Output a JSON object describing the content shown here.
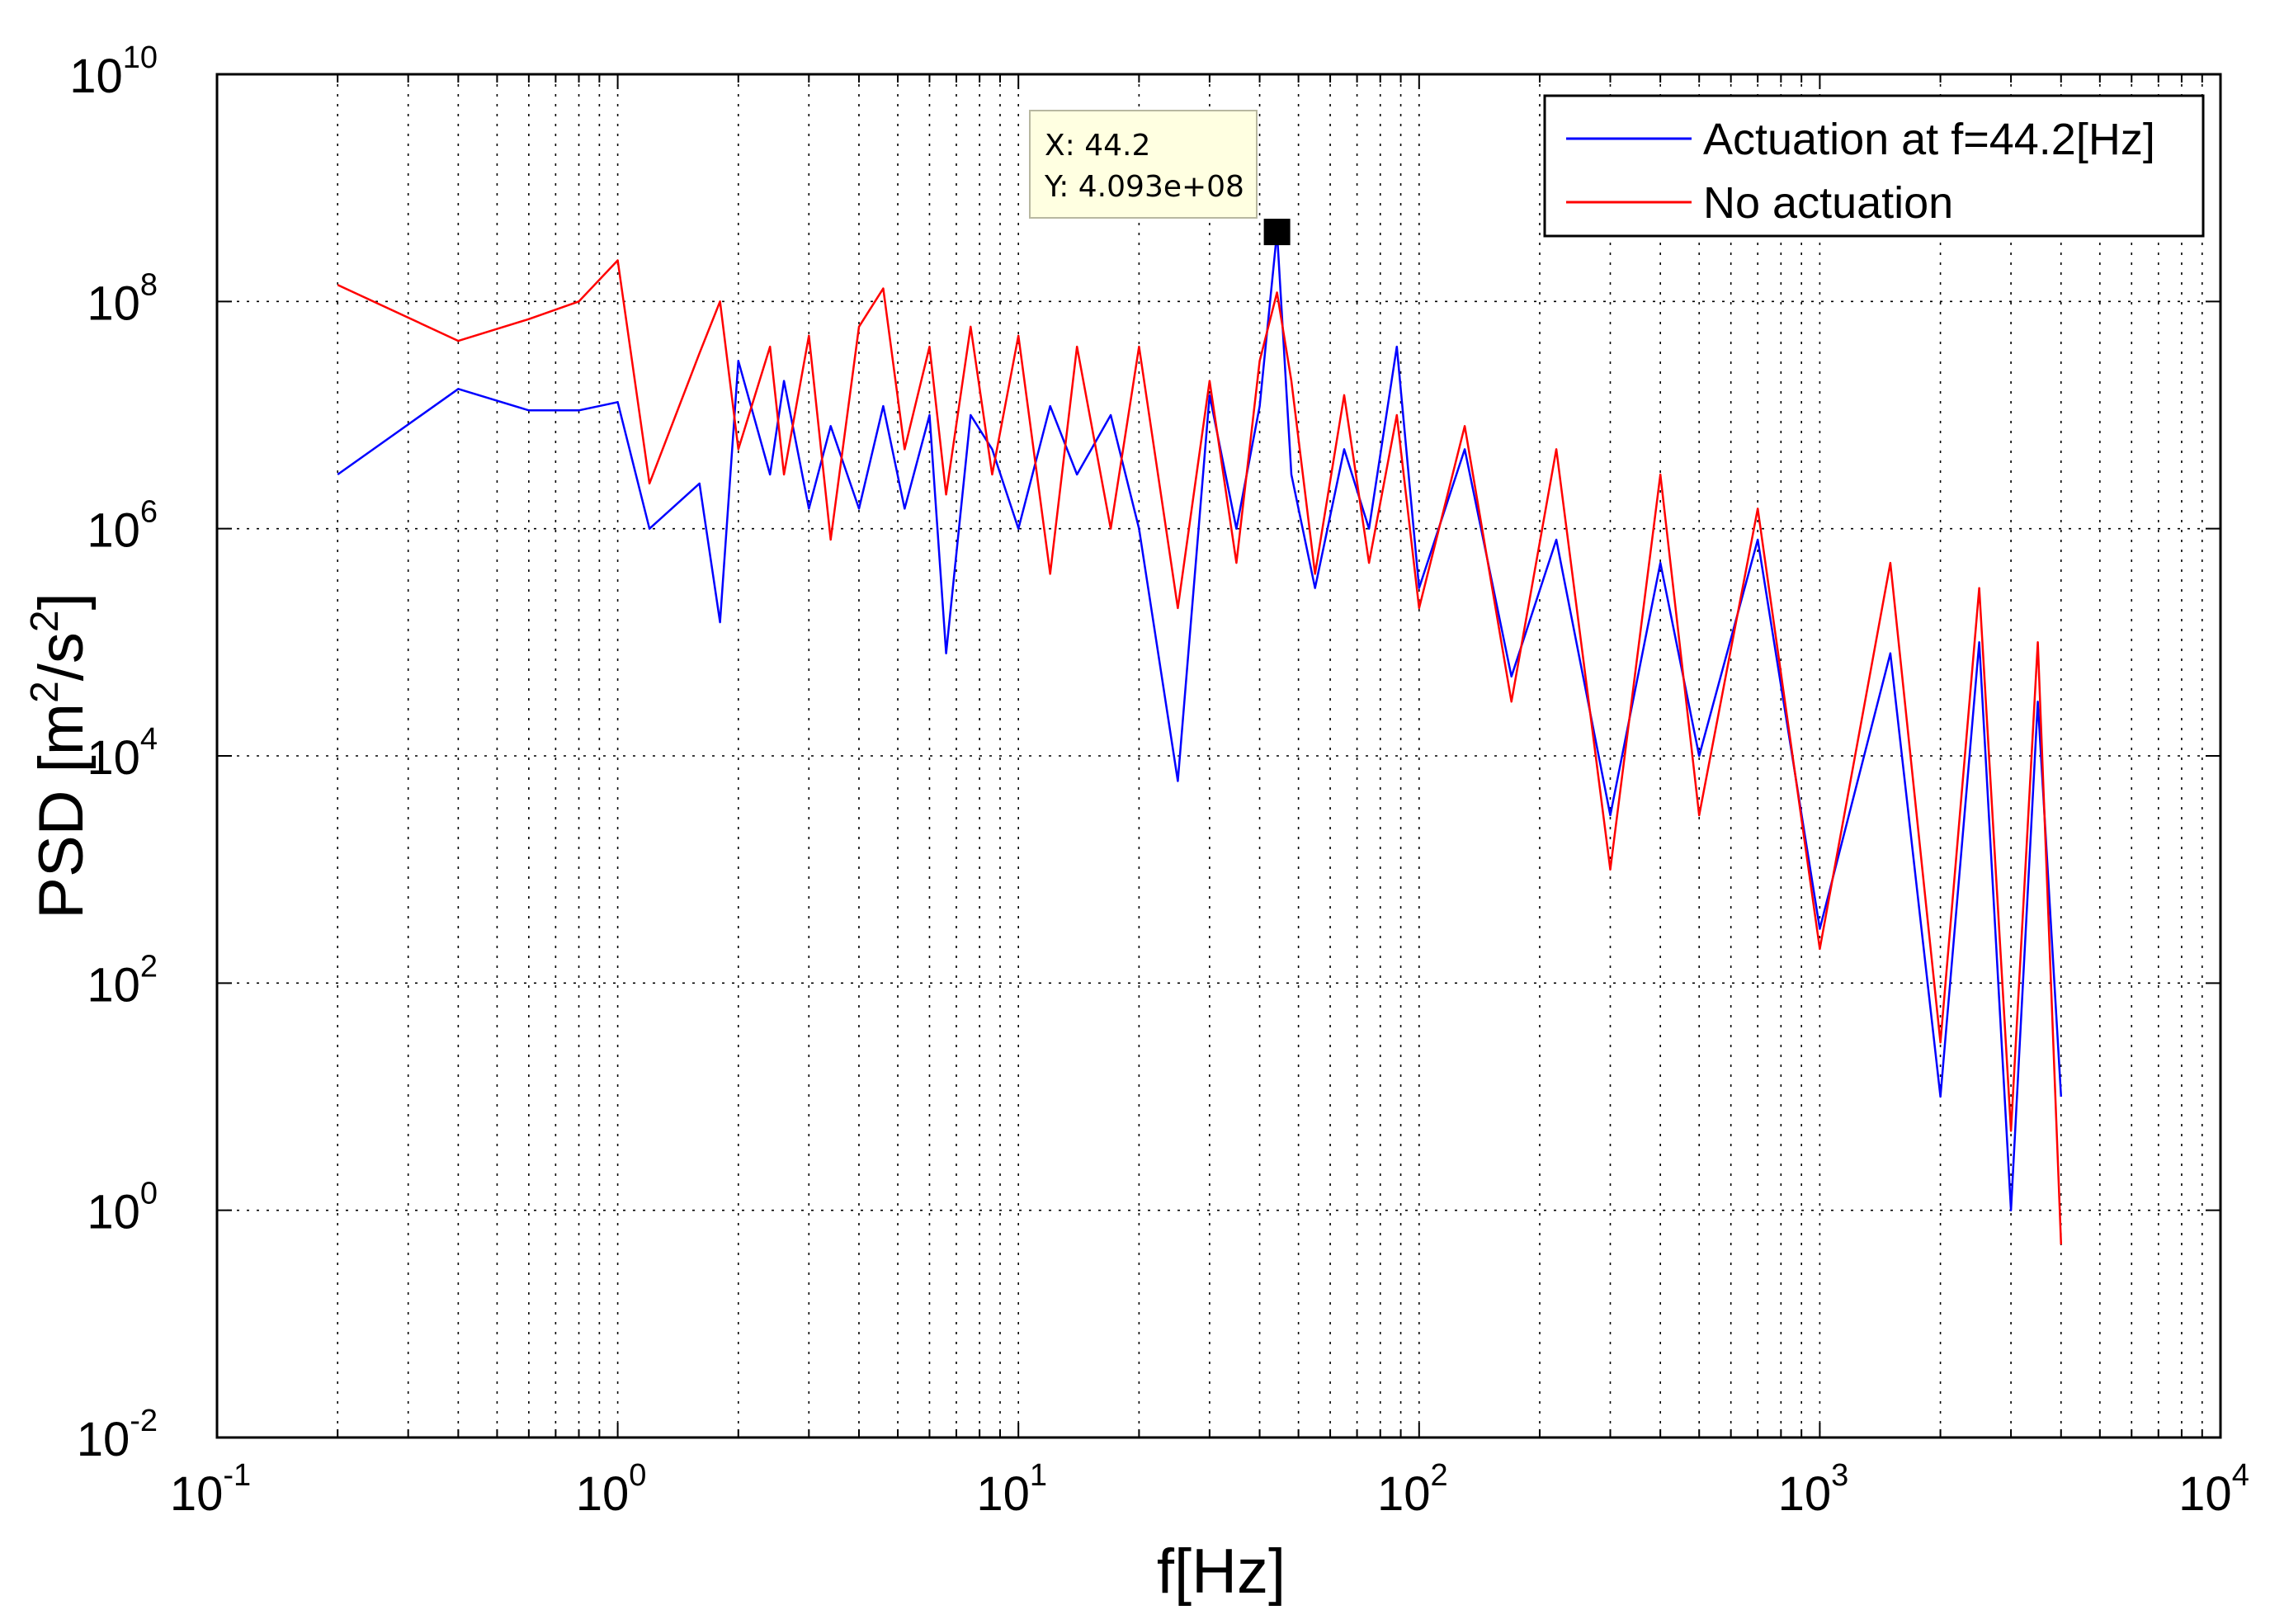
{
  "chart_data": {
    "type": "line",
    "title": "",
    "xlabel": "f[Hz]",
    "ylabel": "PSD [m²/s²]",
    "ylabel_parts": {
      "main": "PSD [m",
      "sup1": "2",
      "mid": "/s",
      "sup2": "2",
      "end": "]"
    },
    "x_scale": "log",
    "y_scale": "log",
    "xlim": [
      0.1,
      10000
    ],
    "ylim": [
      0.01,
      10000000000
    ],
    "grid": true,
    "legend_position": "top-right",
    "x_ticks": [
      {
        "base": "10",
        "exp": "-1",
        "value": 0.1
      },
      {
        "base": "10",
        "exp": "0",
        "value": 1
      },
      {
        "base": "10",
        "exp": "1",
        "value": 10
      },
      {
        "base": "10",
        "exp": "2",
        "value": 100
      },
      {
        "base": "10",
        "exp": "3",
        "value": 1000
      },
      {
        "base": "10",
        "exp": "4",
        "value": 10000
      }
    ],
    "y_ticks": [
      {
        "base": "10",
        "exp": "-2",
        "value": 0.01
      },
      {
        "base": "10",
        "exp": "0",
        "value": 1
      },
      {
        "base": "10",
        "exp": "2",
        "value": 100
      },
      {
        "base": "10",
        "exp": "4",
        "value": 10000
      },
      {
        "base": "10",
        "exp": "6",
        "value": 1000000
      },
      {
        "base": "10",
        "exp": "8",
        "value": 100000000
      },
      {
        "base": "10",
        "exp": "10",
        "value": 10000000000
      }
    ],
    "series": [
      {
        "name": "Actuation at f=44.2[Hz]",
        "color": "#0000ff",
        "x": [
          0.2,
          0.4,
          0.6,
          0.8,
          1.0,
          1.2,
          1.6,
          1.8,
          2.0,
          2.4,
          2.6,
          3.0,
          3.4,
          4.0,
          4.6,
          5.2,
          6.0,
          6.6,
          7.6,
          8.6,
          10,
          12,
          14,
          17,
          20,
          25,
          30,
          35,
          40,
          44.2,
          48,
          55,
          65,
          75,
          88,
          100,
          130,
          170,
          220,
          300,
          400,
          500,
          700,
          1000,
          1500,
          2000,
          2500,
          3000,
          3500,
          4000
        ],
        "y": [
          3000000,
          17000000,
          11000000,
          11000000,
          13000000,
          1000000,
          2500000,
          150000,
          30000000,
          3000000,
          20000000,
          1500000,
          8000000,
          1500000,
          12000000,
          1500000,
          10000000,
          80000,
          10000000,
          5000000,
          1000000,
          12000000,
          3000000,
          10000000,
          1000000,
          6000,
          15000000,
          1000000,
          12000000,
          409300000,
          3000000,
          300000,
          5000000,
          1000000,
          40000000,
          300000,
          5000000,
          50000,
          800000,
          3000,
          500000,
          10000,
          800000,
          300,
          80000,
          10,
          100000,
          1,
          30000,
          10
        ]
      },
      {
        "name": "No actuation",
        "color": "#ff0000",
        "x": [
          0.2,
          0.4,
          0.6,
          0.8,
          1.0,
          1.2,
          1.6,
          1.8,
          2.0,
          2.4,
          2.6,
          3.0,
          3.4,
          4.0,
          4.6,
          5.2,
          6.0,
          6.6,
          7.6,
          8.6,
          10,
          12,
          14,
          17,
          20,
          25,
          30,
          35,
          40,
          44.2,
          48,
          55,
          65,
          75,
          88,
          100,
          130,
          170,
          220,
          300,
          400,
          500,
          700,
          1000,
          1500,
          2000,
          2500,
          3000,
          3500,
          4000
        ],
        "y": [
          140000000,
          45000000,
          70000000,
          100000000,
          230000000,
          2500000,
          35000000,
          100000000,
          5000000,
          40000000,
          3000000,
          50000000,
          800000,
          60000000,
          130000000,
          5000000,
          40000000,
          2000000,
          60000000,
          3000000,
          50000000,
          400000,
          40000000,
          1000000,
          40000000,
          200000,
          20000000,
          500000,
          30000000,
          120000000,
          20000000,
          400000,
          15000000,
          500000,
          10000000,
          200000,
          8000000,
          30000,
          5000000,
          1000,
          3000000,
          3000,
          1500000,
          200,
          500000,
          30,
          300000,
          5,
          100000,
          0.5
        ]
      }
    ],
    "datatip": {
      "x_label": "X: 44.2",
      "y_label": "Y: 4.093e+08",
      "x": 44.2,
      "y": 409300000
    },
    "colors": {
      "actuation": "#0000ff",
      "no_actuation": "#ff0000",
      "grid": "#000000",
      "datatip_bg": "#ffffe1"
    }
  }
}
